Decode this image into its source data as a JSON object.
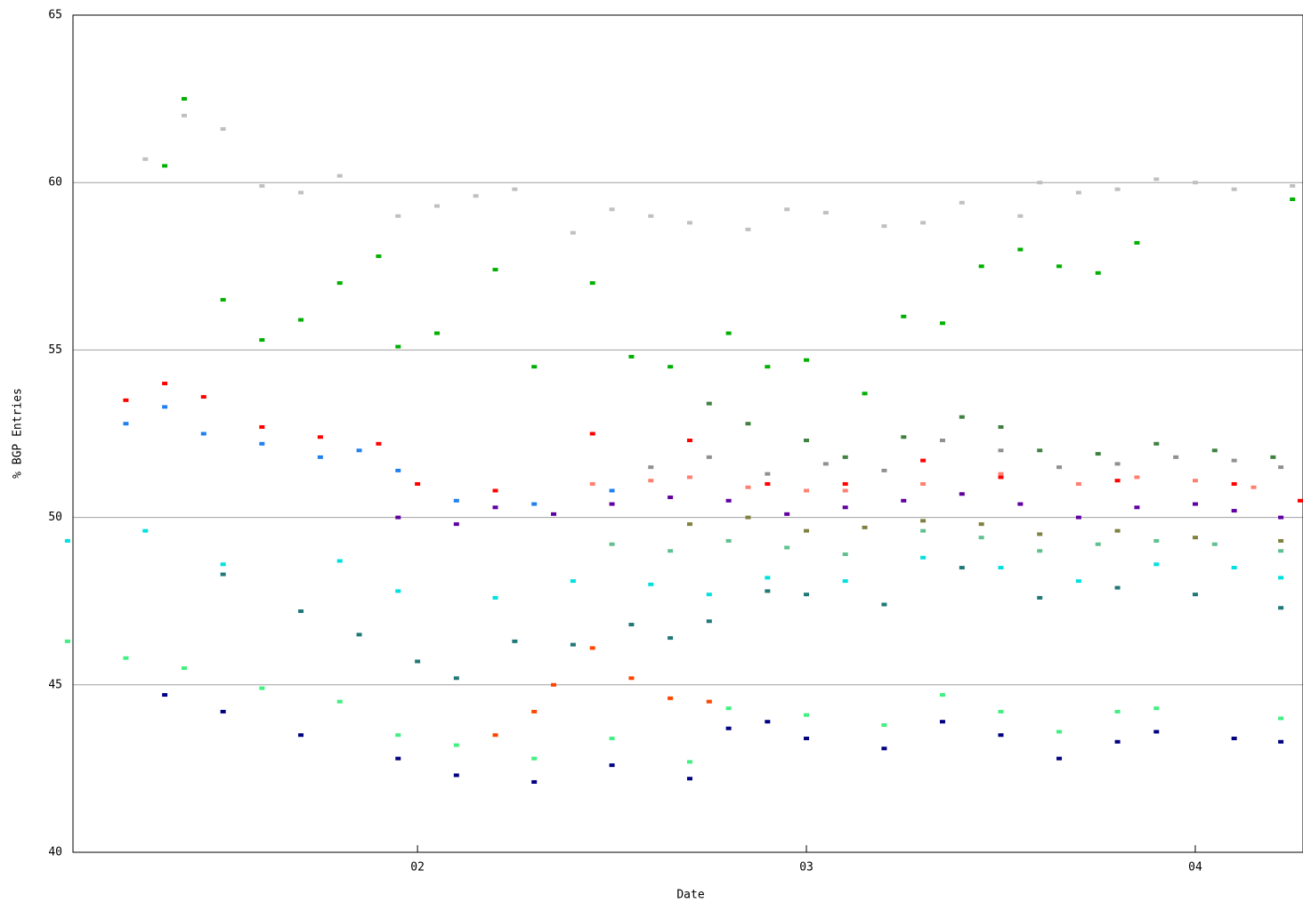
{
  "chart_data": {
    "type": "scatter",
    "xlabel": "Date",
    "ylabel": "% BGP Entries",
    "xlim": [
      1.114,
      4.277
    ],
    "ylim": [
      40,
      65
    ],
    "xticks": [
      {
        "value": 2,
        "label": "02"
      },
      {
        "value": 3,
        "label": "03"
      },
      {
        "value": 4,
        "label": "04"
      }
    ],
    "yticks": [
      40,
      45,
      50,
      55,
      60,
      65
    ],
    "grid": true,
    "series": [
      {
        "color": "#c0c0c0",
        "x": [
          1.3,
          1.4,
          1.5,
          1.6,
          1.7,
          1.8,
          1.95,
          2.05,
          2.15,
          2.25,
          2.4,
          2.5,
          2.6,
          2.7,
          2.85,
          2.95,
          3.05,
          3.2,
          3.3,
          3.4,
          3.55,
          3.6,
          3.7,
          3.8,
          3.9,
          4.0,
          4.1,
          4.25
        ],
        "values": [
          60.7,
          62,
          61.6,
          59.9,
          59.7,
          60.2,
          59,
          59.3,
          59.6,
          59.8,
          58.5,
          59.2,
          59,
          58.8,
          58.6,
          59.2,
          59.1,
          58.7,
          58.8,
          59.4,
          59,
          60,
          59.7,
          59.8,
          60.1,
          60,
          59.8,
          59.9
        ]
      },
      {
        "color": "#00b000",
        "x": [
          1.35,
          1.4,
          1.5,
          1.6,
          1.7,
          1.8,
          1.9,
          1.95,
          2.05,
          2.2,
          2.3,
          2.45,
          2.55,
          2.65,
          2.8,
          2.9,
          3.0,
          3.15,
          3.25,
          3.35,
          3.45,
          3.55,
          3.65,
          3.75,
          3.85,
          4.25
        ],
        "values": [
          60.5,
          62.5,
          56.5,
          55.3,
          55.9,
          57,
          57.8,
          55.1,
          55.5,
          57.4,
          54.5,
          57,
          54.8,
          54.5,
          55.5,
          54.5,
          54.7,
          53.7,
          56,
          55.8,
          57.5,
          58,
          57.5,
          57.3,
          58.2,
          59.5
        ]
      },
      {
        "color": "#ff0000",
        "x": [
          1.25,
          1.35,
          1.45,
          1.6,
          1.75,
          1.9,
          2.0,
          2.2,
          2.45,
          2.7,
          2.9,
          3.1,
          3.3,
          3.5,
          3.8,
          4.1,
          4.27
        ],
        "values": [
          53.5,
          54,
          53.6,
          52.7,
          52.4,
          52.2,
          51,
          50.8,
          52.5,
          52.3,
          51,
          51,
          51.7,
          51.2,
          51.1,
          51,
          50.5
        ]
      },
      {
        "color": "#2080f0",
        "x": [
          1.25,
          1.35,
          1.45,
          1.6,
          1.75,
          1.85,
          1.95,
          2.1,
          2.3,
          2.5
        ],
        "values": [
          52.8,
          53.3,
          52.5,
          52.2,
          51.8,
          52,
          51.4,
          50.5,
          50.4,
          50.8
        ]
      },
      {
        "color": "#000080",
        "x": [
          1.35,
          1.5,
          1.7,
          1.95,
          2.1,
          2.3,
          2.5,
          2.7,
          2.8,
          2.9,
          3.0,
          3.2,
          3.35,
          3.5,
          3.65,
          3.8,
          3.9,
          4.1,
          4.22
        ],
        "values": [
          44.7,
          44.2,
          43.5,
          42.8,
          42.3,
          42.1,
          42.6,
          42.2,
          43.7,
          43.9,
          43.4,
          43.1,
          43.9,
          43.5,
          42.8,
          43.3,
          43.6,
          43.4,
          43.3
        ]
      },
      {
        "color": "#40f080",
        "x": [
          1.1,
          1.25,
          1.4,
          1.6,
          1.8,
          1.95,
          2.1,
          2.3,
          2.5,
          2.7,
          2.8,
          3.0,
          3.2,
          3.35,
          3.5,
          3.65,
          3.8,
          3.9,
          4.22
        ],
        "values": [
          46.3,
          45.8,
          45.5,
          44.9,
          44.5,
          43.5,
          43.2,
          42.8,
          43.4,
          42.7,
          44.3,
          44.1,
          43.8,
          44.7,
          44.2,
          43.6,
          44.2,
          44.3,
          44
        ]
      },
      {
        "color": "#ff4500",
        "x": [
          2.2,
          2.3,
          2.35,
          2.45,
          2.55,
          2.65,
          2.75
        ],
        "values": [
          43.5,
          44.2,
          45,
          46.1,
          45.2,
          44.6,
          44.5
        ]
      },
      {
        "color": "#207878",
        "x": [
          1.5,
          1.7,
          1.85,
          2.0,
          2.1,
          2.25,
          2.4,
          2.55,
          2.65,
          2.75,
          2.9,
          3.0,
          3.2,
          3.4,
          3.6,
          3.8,
          4.0,
          4.22
        ],
        "values": [
          48.3,
          47.2,
          46.5,
          45.7,
          45.2,
          46.3,
          46.2,
          46.8,
          46.4,
          46.9,
          47.8,
          47.7,
          47.4,
          48.5,
          47.6,
          47.9,
          47.7,
          47.3
        ]
      },
      {
        "color": "#00e0e0",
        "x": [
          1.1,
          1.3,
          1.5,
          1.8,
          1.95,
          2.2,
          2.4,
          2.6,
          2.75,
          2.9,
          3.1,
          3.3,
          3.5,
          3.7,
          3.9,
          4.1,
          4.22
        ],
        "values": [
          49.3,
          49.6,
          48.6,
          48.7,
          47.8,
          47.6,
          48.1,
          48,
          47.7,
          48.2,
          48.1,
          48.8,
          48.5,
          48.1,
          48.6,
          48.5,
          48.2
        ]
      },
      {
        "color": "#408040",
        "x": [
          2.75,
          2.85,
          3.0,
          3.1,
          3.25,
          3.4,
          3.5,
          3.6,
          3.75,
          3.9,
          4.05,
          4.2
        ],
        "values": [
          53.4,
          52.8,
          52.3,
          51.8,
          52.4,
          53,
          52.7,
          52,
          51.9,
          52.2,
          52,
          51.8
        ]
      },
      {
        "color": "#6000a0",
        "x": [
          1.95,
          2.1,
          2.2,
          2.35,
          2.5,
          2.65,
          2.8,
          2.95,
          3.1,
          3.25,
          3.4,
          3.55,
          3.7,
          3.85,
          4.0,
          4.1,
          4.22
        ],
        "values": [
          50,
          49.8,
          50.3,
          50.1,
          50.4,
          50.6,
          50.5,
          50.1,
          50.3,
          50.5,
          50.7,
          50.4,
          50,
          50.3,
          50.4,
          50.2,
          50
        ]
      },
      {
        "color": "#808040",
        "x": [
          2.7,
          2.85,
          3.0,
          3.15,
          3.3,
          3.45,
          3.6,
          3.8,
          4.0,
          4.22
        ],
        "values": [
          49.8,
          50,
          49.6,
          49.7,
          49.9,
          49.8,
          49.5,
          49.6,
          49.4,
          49.3
        ]
      },
      {
        "color": "#ff8070",
        "x": [
          2.45,
          2.6,
          2.7,
          2.85,
          3.0,
          3.1,
          3.3,
          3.5,
          3.7,
          3.85,
          4.0,
          4.15
        ],
        "values": [
          51,
          51.1,
          51.2,
          50.9,
          50.8,
          50.8,
          51,
          51.3,
          51,
          51.2,
          51.1,
          50.9
        ]
      },
      {
        "color": "#909090",
        "x": [
          2.6,
          2.75,
          2.9,
          3.05,
          3.2,
          3.35,
          3.5,
          3.65,
          3.8,
          3.95,
          4.1,
          4.22
        ],
        "values": [
          51.5,
          51.8,
          51.3,
          51.6,
          51.4,
          52.3,
          52,
          51.5,
          51.6,
          51.8,
          51.7,
          51.5
        ]
      },
      {
        "color": "#60c090",
        "x": [
          2.5,
          2.65,
          2.8,
          2.95,
          3.1,
          3.3,
          3.45,
          3.6,
          3.75,
          3.9,
          4.05,
          4.22
        ],
        "values": [
          49.2,
          49,
          49.3,
          49.1,
          48.9,
          49.6,
          49.4,
          49,
          49.2,
          49.3,
          49.2,
          49
        ]
      }
    ]
  }
}
